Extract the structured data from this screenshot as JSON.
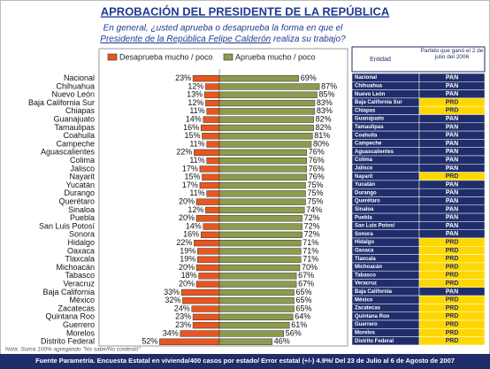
{
  "chart_data": {
    "type": "diverging-bar",
    "title": "APROBACIÓN DEL PRESIDENTE DE LA REPÚBLICA",
    "subtitle": [
      "En general, ¿usted aprueba o desaprueba la forma en que el",
      "Presidente de la República Felipe Calderón",
      " realiza su trabajo?"
    ],
    "categories": [
      "Nacional",
      "Chihuahua",
      "Nuevo León",
      "Baja California Sur",
      "Chiapas",
      "Guanajuato",
      "Tamaulipas",
      "Coahuila",
      "Campeche",
      "Aguascalientes",
      "Colima",
      "Jalisco",
      "Nayarit",
      "Yucatán",
      "Durango",
      "Querétaro",
      "Sinaloa",
      "Puebla",
      "San Luis Potosí",
      "Sonora",
      "Hidalgo",
      "Oaxaca",
      "Tlaxcala",
      "Michoacán",
      "Tabasco",
      "Veracruz",
      "Baja California",
      "México",
      "Zacatecas",
      "Quintana Roo",
      "Guerrero",
      "Morelos",
      "Distrito Federal"
    ],
    "series": [
      {
        "name": "Desaprueba mucho / poco",
        "color": "#e8561f",
        "side": "left",
        "values": [
          23,
          12,
          13,
          12,
          11,
          14,
          16,
          15,
          11,
          22,
          11,
          17,
          15,
          17,
          11,
          20,
          12,
          20,
          14,
          16,
          22,
          19,
          19,
          20,
          18,
          20,
          33,
          32,
          24,
          23,
          23,
          34,
          52
        ],
        "value_labels": [
          "23%",
          "12%",
          "13%",
          "12%",
          "11%",
          "14%",
          "16%",
          "15%",
          "11%",
          "22%",
          "11%",
          "17%",
          "15%",
          "17%",
          "11%",
          "20%",
          "12%",
          "20%",
          "14%",
          "16%",
          "22%",
          "19%",
          "19%",
          "20%",
          "18%",
          "20%",
          "33%",
          "32%",
          "24%",
          "23%",
          "23%",
          "34%",
          "52%"
        ]
      },
      {
        "name": "Aprueba mucho / poco",
        "color": "#8c9c4e",
        "side": "right",
        "values": [
          69,
          87,
          85,
          83,
          83,
          82,
          82,
          81,
          80,
          76,
          76,
          76,
          76,
          75,
          75,
          75,
          74,
          72,
          72,
          72,
          71,
          71,
          71,
          70,
          67,
          67,
          65,
          65,
          65,
          64,
          61,
          56,
          46
        ],
        "value_labels": [
          "69%",
          "87%",
          "85%",
          "83%",
          "83%",
          "82%",
          "82%",
          "81%",
          "80%",
          "76%",
          "76%",
          "76%",
          "76%",
          "75%",
          "75%",
          "75%",
          "74%",
          "72%",
          "72%",
          "72%",
          "71%",
          "71%",
          "71%",
          "70%",
          "67%",
          "67%",
          "65%",
          "65%",
          "65%",
          "64%",
          "61%",
          "56%",
          "46%"
        ]
      }
    ],
    "note": "Nota: Suma 100% agregando \"No sabe/No contestó\"",
    "source": "Fuente Parametría. Encuesta Estatal en vivienda/400 casos por estado/ Error estatal (+/-) 4.9%/ Del 23 de Julio al 6 de Agosto de 2007"
  },
  "table": {
    "header": [
      "Entidad",
      "Partido que ganó el 2 de julio del 2006"
    ],
    "rows": [
      [
        "Nacional",
        "PAN"
      ],
      [
        "Chihuahua",
        "PAN"
      ],
      [
        "Nuevo León",
        "PAN"
      ],
      [
        "Baja California Sur",
        "PRD"
      ],
      [
        "Chiapas",
        "PRD"
      ],
      [
        "Guanajuato",
        "PAN"
      ],
      [
        "Tamaulipas",
        "PAN"
      ],
      [
        "Coahuila",
        "PAN"
      ],
      [
        "Campeche",
        "PAN"
      ],
      [
        "Aguascalientes",
        "PAN"
      ],
      [
        "Colima",
        "PAN"
      ],
      [
        "Jalisco",
        "PAN"
      ],
      [
        "Nayarit",
        "PRD"
      ],
      [
        "Yucatán",
        "PAN"
      ],
      [
        "Durango",
        "PAN"
      ],
      [
        "Querétaro",
        "PAN"
      ],
      [
        "Sinaloa",
        "PAN"
      ],
      [
        "Puebla",
        "PAN"
      ],
      [
        "San Luis Potosí",
        "PAN"
      ],
      [
        "Sonora",
        "PAN"
      ],
      [
        "Hidalgo",
        "PRD"
      ],
      [
        "Oaxaca",
        "PRD"
      ],
      [
        "Tlaxcala",
        "PRD"
      ],
      [
        "Michoacán",
        "PRD"
      ],
      [
        "Tabasco",
        "PRD"
      ],
      [
        "Veracruz",
        "PRD"
      ],
      [
        "Baja California",
        "PAN"
      ],
      [
        "México",
        "PRD"
      ],
      [
        "Zacatecas",
        "PRD"
      ],
      [
        "Quintana Roo",
        "PRD"
      ],
      [
        "Guerrero",
        "PRD"
      ],
      [
        "Morelos",
        "PRD"
      ],
      [
        "Distrito Federal",
        "PRD"
      ]
    ]
  }
}
